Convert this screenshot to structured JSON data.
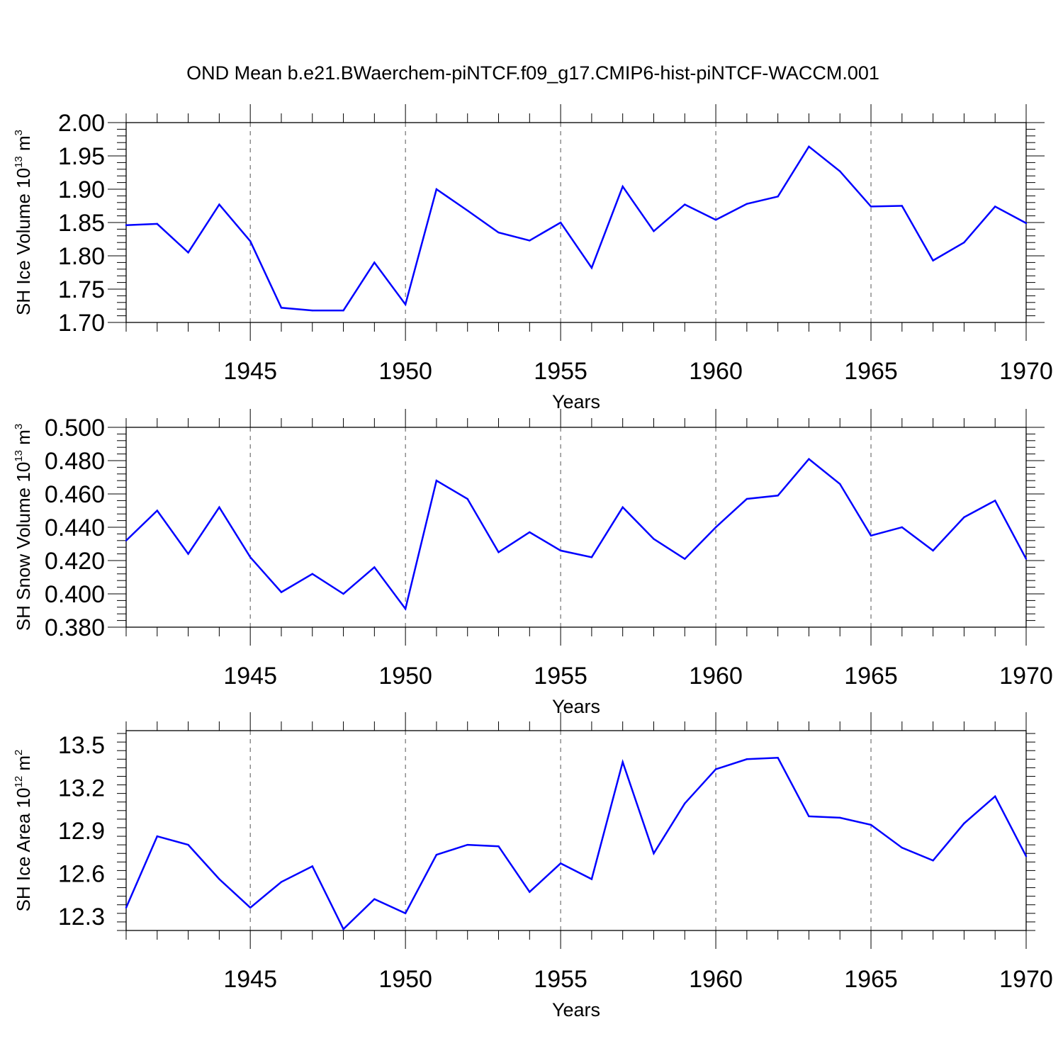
{
  "title": "OND Mean b.e21.BWaerchem-piNTCF.f09_g17.CMIP6-hist-piNTCF-WACCM.001",
  "line_color": "#0000ff",
  "chart_data": [
    {
      "type": "line",
      "name": "ice-volume",
      "xlabel": "Years",
      "ylabel": {
        "text": "SH Ice Volume 10",
        "sup": "13",
        "unit": " m",
        "unit_sup": "3"
      },
      "xlim": [
        1941,
        1970
      ],
      "ylim": [
        1.7,
        2.0
      ],
      "x_ticks": [
        1945,
        1950,
        1955,
        1960,
        1965,
        1970
      ],
      "y_ticks": [
        "1.70",
        "1.75",
        "1.80",
        "1.85",
        "1.90",
        "1.95",
        "2.00"
      ],
      "x": [
        1941,
        1942,
        1943,
        1944,
        1945,
        1946,
        1947,
        1948,
        1949,
        1950,
        1951,
        1952,
        1953,
        1954,
        1955,
        1956,
        1957,
        1958,
        1959,
        1960,
        1961,
        1962,
        1963,
        1964,
        1965,
        1966,
        1967,
        1968,
        1969,
        1970
      ],
      "values": [
        1.846,
        1.848,
        1.805,
        1.877,
        1.822,
        1.722,
        1.718,
        1.718,
        1.79,
        1.727,
        1.9,
        1.868,
        1.835,
        1.823,
        1.85,
        1.782,
        1.904,
        1.837,
        1.877,
        1.854,
        1.878,
        1.889,
        1.964,
        1.927,
        1.874,
        1.875,
        1.793,
        1.82,
        1.874,
        1.849
      ]
    },
    {
      "type": "line",
      "name": "snow-volume",
      "xlabel": "Years",
      "ylabel": {
        "text": "SH Snow Volume 10",
        "sup": "13",
        "unit": " m",
        "unit_sup": "3"
      },
      "xlim": [
        1941,
        1970
      ],
      "ylim": [
        0.38,
        0.5
      ],
      "x_ticks": [
        1945,
        1950,
        1955,
        1960,
        1965,
        1970
      ],
      "y_ticks": [
        "0.380",
        "0.400",
        "0.420",
        "0.440",
        "0.460",
        "0.480",
        "0.500"
      ],
      "x": [
        1941,
        1942,
        1943,
        1944,
        1945,
        1946,
        1947,
        1948,
        1949,
        1950,
        1951,
        1952,
        1953,
        1954,
        1955,
        1956,
        1957,
        1958,
        1959,
        1960,
        1961,
        1962,
        1963,
        1964,
        1965,
        1966,
        1967,
        1968,
        1969,
        1970
      ],
      "values": [
        0.432,
        0.45,
        0.424,
        0.452,
        0.422,
        0.401,
        0.412,
        0.4,
        0.416,
        0.391,
        0.468,
        0.457,
        0.425,
        0.437,
        0.426,
        0.422,
        0.452,
        0.433,
        0.421,
        0.44,
        0.457,
        0.459,
        0.481,
        0.466,
        0.435,
        0.44,
        0.426,
        0.446,
        0.456,
        0.421
      ]
    },
    {
      "type": "line",
      "name": "ice-area",
      "xlabel": "Years",
      "ylabel": {
        "text": "SH Ice Area 10",
        "sup": "12",
        "unit": " m",
        "unit_sup": "2"
      },
      "xlim": [
        1941,
        1970
      ],
      "ylim": [
        12.2,
        13.6
      ],
      "x_ticks": [
        1945,
        1950,
        1955,
        1960,
        1965,
        1970
      ],
      "y_ticks": [
        "12.3",
        "12.6",
        "12.9",
        "13.2",
        "13.5"
      ],
      "x": [
        1941,
        1942,
        1943,
        1944,
        1945,
        1946,
        1947,
        1948,
        1949,
        1950,
        1951,
        1952,
        1953,
        1954,
        1955,
        1956,
        1957,
        1958,
        1959,
        1960,
        1961,
        1962,
        1963,
        1964,
        1965,
        1966,
        1967,
        1968,
        1969,
        1970
      ],
      "values": [
        12.36,
        12.86,
        12.8,
        12.56,
        12.36,
        12.54,
        12.65,
        12.21,
        12.42,
        12.32,
        12.73,
        12.8,
        12.79,
        12.47,
        12.67,
        12.56,
        13.38,
        12.74,
        13.09,
        13.33,
        13.4,
        13.41,
        13.0,
        12.99,
        12.94,
        12.78,
        12.69,
        12.95,
        13.14,
        12.72
      ]
    }
  ]
}
